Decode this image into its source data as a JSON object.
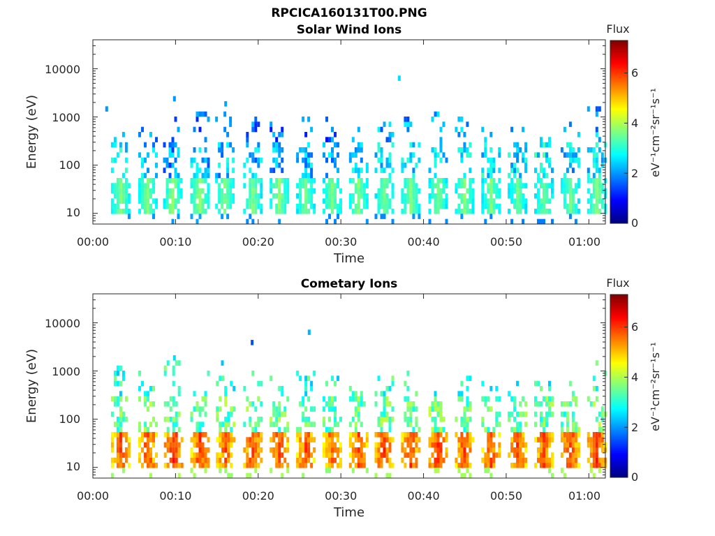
{
  "figure_title": "RPCICA160131T00.PNG",
  "colormap": {
    "stops": [
      "#00007f",
      "#0000ff",
      "#007fff",
      "#00ffff",
      "#7fff7f",
      "#ffff00",
      "#ff7f00",
      "#ff0000",
      "#7f0000"
    ]
  },
  "chart_data": [
    {
      "type": "heatmap",
      "title": "Solar Wind Ions",
      "xlabel": "Time",
      "ylabel": "Energy (eV)",
      "xlim": [
        "00:00",
        "01:02"
      ],
      "xticks": [
        "00:00",
        "00:10",
        "00:20",
        "00:30",
        "00:40",
        "00:50",
        "01:00"
      ],
      "yscale": "log",
      "ylim": [
        6,
        40000
      ],
      "yticks": [
        "10",
        "100",
        "1000",
        "10000"
      ],
      "colorbar": {
        "label": "Flux",
        "unit": "eV⁻¹cm⁻²sr⁻¹s⁻¹",
        "range": [
          0,
          7.3
        ],
        "ticks": [
          "0",
          "2",
          "4",
          "6"
        ]
      },
      "bursts": [
        {
          "t": 3.2,
          "core": [
            3.5,
            3.8
          ],
          "hi": 1000,
          "mid": 2.6
        },
        {
          "t": 6.5,
          "core": [
            3.5,
            3.8
          ],
          "hi": 700,
          "mid": 2.4
        },
        {
          "t": 9.5,
          "core": [
            3.5,
            3.9
          ],
          "hi": 1000,
          "mid": 2.0
        },
        {
          "t": 12.8,
          "core": [
            3.6,
            3.9
          ],
          "hi": 1100,
          "mid": 2.2
        },
        {
          "t": 15.8,
          "core": [
            3.5,
            3.8
          ],
          "hi": 1500,
          "mid": 2.3
        },
        {
          "t": 19.2,
          "core": [
            3.4,
            3.8
          ],
          "hi": 900,
          "mid": 2.2
        },
        {
          "t": 22.4,
          "core": [
            3.5,
            3.9
          ],
          "hi": 800,
          "mid": 2.1
        },
        {
          "t": 25.6,
          "core": [
            3.4,
            3.8
          ],
          "hi": 1000,
          "mid": 2.2
        },
        {
          "t": 28.8,
          "core": [
            3.4,
            3.8
          ],
          "hi": 1100,
          "mid": 2.1
        },
        {
          "t": 32.0,
          "core": [
            3.5,
            3.8
          ],
          "hi": 600,
          "mid": 2.4
        },
        {
          "t": 35.1,
          "core": [
            3.4,
            3.7
          ],
          "hi": 900,
          "mid": 2.5
        },
        {
          "t": 38.3,
          "core": [
            3.5,
            3.8
          ],
          "hi": 1000,
          "mid": 2.4
        },
        {
          "t": 41.6,
          "core": [
            3.4,
            3.8
          ],
          "hi": 1200,
          "mid": 2.4
        },
        {
          "t": 44.8,
          "core": [
            3.5,
            3.8
          ],
          "hi": 1100,
          "mid": 2.5
        },
        {
          "t": 48.0,
          "core": [
            3.4,
            3.8
          ],
          "hi": 700,
          "mid": 2.6
        },
        {
          "t": 51.2,
          "core": [
            3.3,
            3.7
          ],
          "hi": 500,
          "mid": 2.5
        },
        {
          "t": 54.4,
          "core": [
            3.3,
            3.7
          ],
          "hi": 600,
          "mid": 2.6
        },
        {
          "t": 57.6,
          "core": [
            3.4,
            3.7
          ],
          "hi": 700,
          "mid": 2.3
        },
        {
          "t": 60.8,
          "core": [
            3.5,
            3.8
          ],
          "hi": 1500,
          "mid": 2.5
        }
      ],
      "scatter_points": [
        {
          "t": 1.5,
          "e": 1400,
          "v": 2.0
        },
        {
          "t": 9.7,
          "e": 2400,
          "v": 2.0
        },
        {
          "t": 15.9,
          "e": 2000,
          "v": 2.1
        },
        {
          "t": 36.9,
          "e": 6500,
          "v": 2.5
        }
      ]
    },
    {
      "type": "heatmap",
      "title": "Cometary Ions",
      "xlabel": "Time",
      "ylabel": "Energy (eV)",
      "xlim": [
        "00:00",
        "01:02"
      ],
      "xticks": [
        "00:00",
        "00:10",
        "00:20",
        "00:30",
        "00:40",
        "00:50",
        "01:00"
      ],
      "yscale": "log",
      "ylim": [
        6,
        40000
      ],
      "yticks": [
        "10",
        "100",
        "1000",
        "10000"
      ],
      "colorbar": {
        "label": "Flux",
        "unit": "eV⁻¹cm⁻²sr⁻¹s⁻¹",
        "range": [
          0,
          7.3
        ],
        "ticks": [
          "0",
          "2",
          "4",
          "6"
        ]
      },
      "bursts": [
        {
          "t": 3.2,
          "core": [
            5.3,
            6.2
          ],
          "hi": 1200,
          "mid": 3.4
        },
        {
          "t": 6.5,
          "core": [
            5.4,
            6.3
          ],
          "hi": 800,
          "mid": 3.5
        },
        {
          "t": 9.6,
          "core": [
            5.5,
            6.5
          ],
          "hi": 1500,
          "mid": 3.5
        },
        {
          "t": 12.8,
          "core": [
            5.4,
            6.3
          ],
          "hi": 1000,
          "mid": 3.4
        },
        {
          "t": 15.9,
          "core": [
            5.3,
            6.2
          ],
          "hi": 1300,
          "mid": 3.4
        },
        {
          "t": 19.2,
          "core": [
            5.4,
            6.3
          ],
          "hi": 1000,
          "mid": 3.5
        },
        {
          "t": 22.4,
          "core": [
            5.4,
            6.2
          ],
          "hi": 700,
          "mid": 3.4
        },
        {
          "t": 25.6,
          "core": [
            5.3,
            6.2
          ],
          "hi": 900,
          "mid": 3.4
        },
        {
          "t": 28.8,
          "core": [
            5.2,
            6.1
          ],
          "hi": 700,
          "mid": 3.3
        },
        {
          "t": 32.0,
          "core": [
            5.3,
            6.2
          ],
          "hi": 500,
          "mid": 3.4
        },
        {
          "t": 35.1,
          "core": [
            5.4,
            6.3
          ],
          "hi": 800,
          "mid": 3.5
        },
        {
          "t": 38.3,
          "core": [
            5.4,
            6.3
          ],
          "hi": 1000,
          "mid": 3.4
        },
        {
          "t": 41.6,
          "core": [
            5.5,
            6.4
          ],
          "hi": 900,
          "mid": 3.5
        },
        {
          "t": 44.8,
          "core": [
            5.4,
            6.3
          ],
          "hi": 900,
          "mid": 3.4
        },
        {
          "t": 48.0,
          "core": [
            5.3,
            6.2
          ],
          "hi": 600,
          "mid": 3.4
        },
        {
          "t": 51.2,
          "core": [
            5.4,
            6.3
          ],
          "hi": 600,
          "mid": 3.4
        },
        {
          "t": 54.4,
          "core": [
            5.3,
            6.2
          ],
          "hi": 500,
          "mid": 3.4
        },
        {
          "t": 57.6,
          "core": [
            5.4,
            6.3
          ],
          "hi": 500,
          "mid": 3.4
        },
        {
          "t": 60.8,
          "core": [
            5.5,
            6.4
          ],
          "hi": 1500,
          "mid": 3.5
        }
      ],
      "scatter_points": [
        {
          "t": 9.7,
          "e": 2000,
          "v": 2.5
        },
        {
          "t": 19.1,
          "e": 3700,
          "v": 1.5
        },
        {
          "t": 26.0,
          "e": 5700,
          "v": 2.2
        },
        {
          "t": 15.5,
          "e": 1500,
          "v": 2.3
        }
      ]
    }
  ]
}
